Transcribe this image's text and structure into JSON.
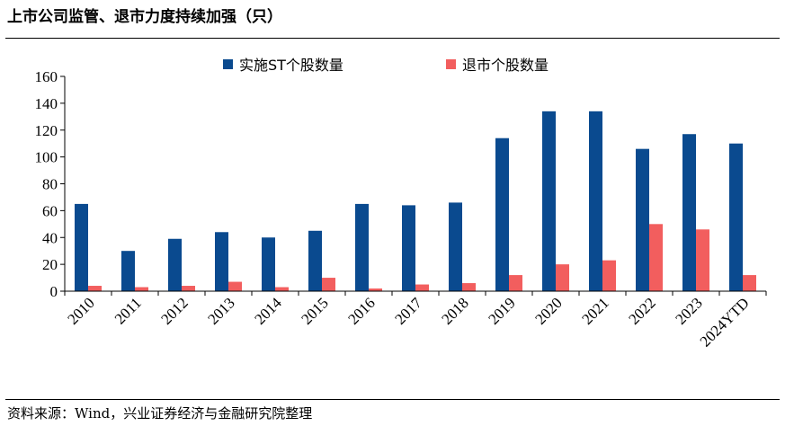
{
  "header": {
    "title": "上市公司监管、退市力度持续加强（只）"
  },
  "footer": {
    "source": "资料来源：Wind，兴业证券经济与金融研究院整理"
  },
  "chart_data": {
    "type": "bar",
    "title": "上市公司监管、退市力度持续加强（只）",
    "xlabel": "",
    "ylabel": "",
    "categories": [
      "2010",
      "2011",
      "2012",
      "2013",
      "2014",
      "2015",
      "2016",
      "2017",
      "2018",
      "2019",
      "2020",
      "2021",
      "2022",
      "2023",
      "2024YTD"
    ],
    "series": [
      {
        "name": "实施ST个股数量",
        "color": "#0a4a8f",
        "values": [
          65,
          30,
          39,
          44,
          40,
          45,
          65,
          64,
          66,
          114,
          134,
          134,
          106,
          117,
          110
        ]
      },
      {
        "name": "退市个股数量",
        "color": "#f25e5e",
        "values": [
          4,
          3,
          4,
          7,
          3,
          10,
          2,
          5,
          6,
          12,
          20,
          23,
          50,
          46,
          12
        ]
      }
    ],
    "ylim": [
      0,
      160
    ],
    "yticks": [
      0,
      20,
      40,
      60,
      80,
      100,
      120,
      140,
      160
    ],
    "grid": false,
    "legend": "top-center"
  }
}
